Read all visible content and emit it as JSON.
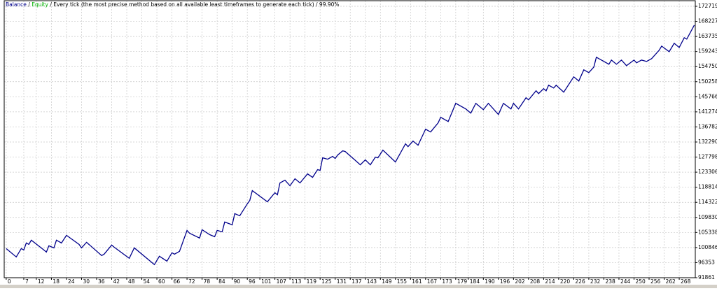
{
  "chart_data": {
    "type": "line",
    "series": [
      {
        "name": "Balance",
        "color": "#00008b",
        "x": [
          0,
          4,
          6,
          7,
          8,
          9,
          10,
          15,
          16,
          17,
          19,
          20,
          22,
          24,
          29,
          30,
          32,
          38,
          39,
          42,
          43,
          49,
          51,
          59,
          61,
          64,
          66,
          67,
          69,
          72,
          73,
          77,
          78,
          81,
          83,
          84,
          86,
          87,
          90,
          91,
          93,
          96,
          97,
          98,
          104,
          107,
          108,
          109,
          111,
          113,
          115,
          117,
          120,
          122,
          124,
          125,
          126,
          128,
          130,
          131,
          132,
          134,
          135,
          141,
          143,
          145,
          147,
          148,
          150,
          155,
          159,
          160,
          162,
          164,
          167,
          169,
          172,
          173,
          176,
          179,
          183,
          185,
          187,
          190,
          192,
          196,
          198,
          201,
          202,
          204,
          207,
          208,
          211,
          212,
          214,
          215,
          216,
          218,
          219,
          222,
          226,
          228,
          230,
          232,
          234,
          235,
          240,
          241,
          243,
          245,
          247,
          250,
          251,
          253,
          255,
          257,
          260,
          261,
          264,
          266,
          268,
          270,
          271,
          274
        ],
        "values": [
          100543,
          98047,
          100543,
          100127,
          102207,
          101791,
          103039,
          100127,
          99503,
          101375,
          100751,
          103039,
          102207,
          104495,
          101791,
          100751,
          102415,
          98463,
          98879,
          101583,
          100959,
          97631,
          100751,
          95759,
          98255,
          96799,
          99295,
          98879,
          99711,
          105951,
          105119,
          103663,
          106159,
          104703,
          104079,
          105951,
          105535,
          108447,
          107615,
          110943,
          110319,
          113855,
          114895,
          117807,
          114479,
          117183,
          116559,
          120095,
          120927,
          119263,
          121343,
          120095,
          122799,
          121759,
          124047,
          123839,
          127583,
          127167,
          127999,
          127375,
          128415,
          129663,
          129455,
          125503,
          126959,
          125503,
          127791,
          127583,
          129871,
          126335,
          131743,
          130911,
          132575,
          131327,
          136111,
          135279,
          137983,
          139647,
          138399,
          143807,
          142143,
          140895,
          143807,
          141935,
          143807,
          140479,
          143807,
          142143,
          143807,
          142143,
          145471,
          144847,
          147551,
          146719,
          148175,
          147551,
          149215,
          148383,
          149215,
          147135,
          151711,
          150463,
          153791,
          152959,
          154623,
          157535,
          155455,
          156703,
          155455,
          156703,
          155039,
          156703,
          155871,
          156703,
          156287,
          157119,
          159615,
          160863,
          159199,
          161695,
          160447,
          163359,
          162943,
          167103
        ]
      }
    ],
    "equity": {
      "name": "Equity",
      "color": "#00b000"
    },
    "separator": "/",
    "description": "/ Every tick (the most precise method based on all available least timeframes to generate each tick) / 99.90%",
    "xlim": [
      -0.8,
      274.4
    ],
    "xticks": [
      0,
      7,
      12,
      18,
      24,
      30,
      36,
      42,
      48,
      54,
      60,
      66,
      72,
      78,
      84,
      90,
      96,
      101,
      107,
      113,
      119,
      125,
      131,
      137,
      143,
      149,
      155,
      161,
      167,
      173,
      179,
      184,
      190,
      196,
      202,
      208,
      214,
      220,
      226,
      232,
      238,
      244,
      250,
      256,
      262,
      268
    ],
    "ylim": [
      91861,
      174386
    ],
    "yticks": [
      91861,
      96353,
      100846,
      105338,
      109830,
      114322,
      118814,
      123306,
      127798,
      132290,
      136782,
      141274,
      145766,
      150258,
      154750,
      159243,
      163735,
      168227,
      172719
    ],
    "grid": true
  }
}
